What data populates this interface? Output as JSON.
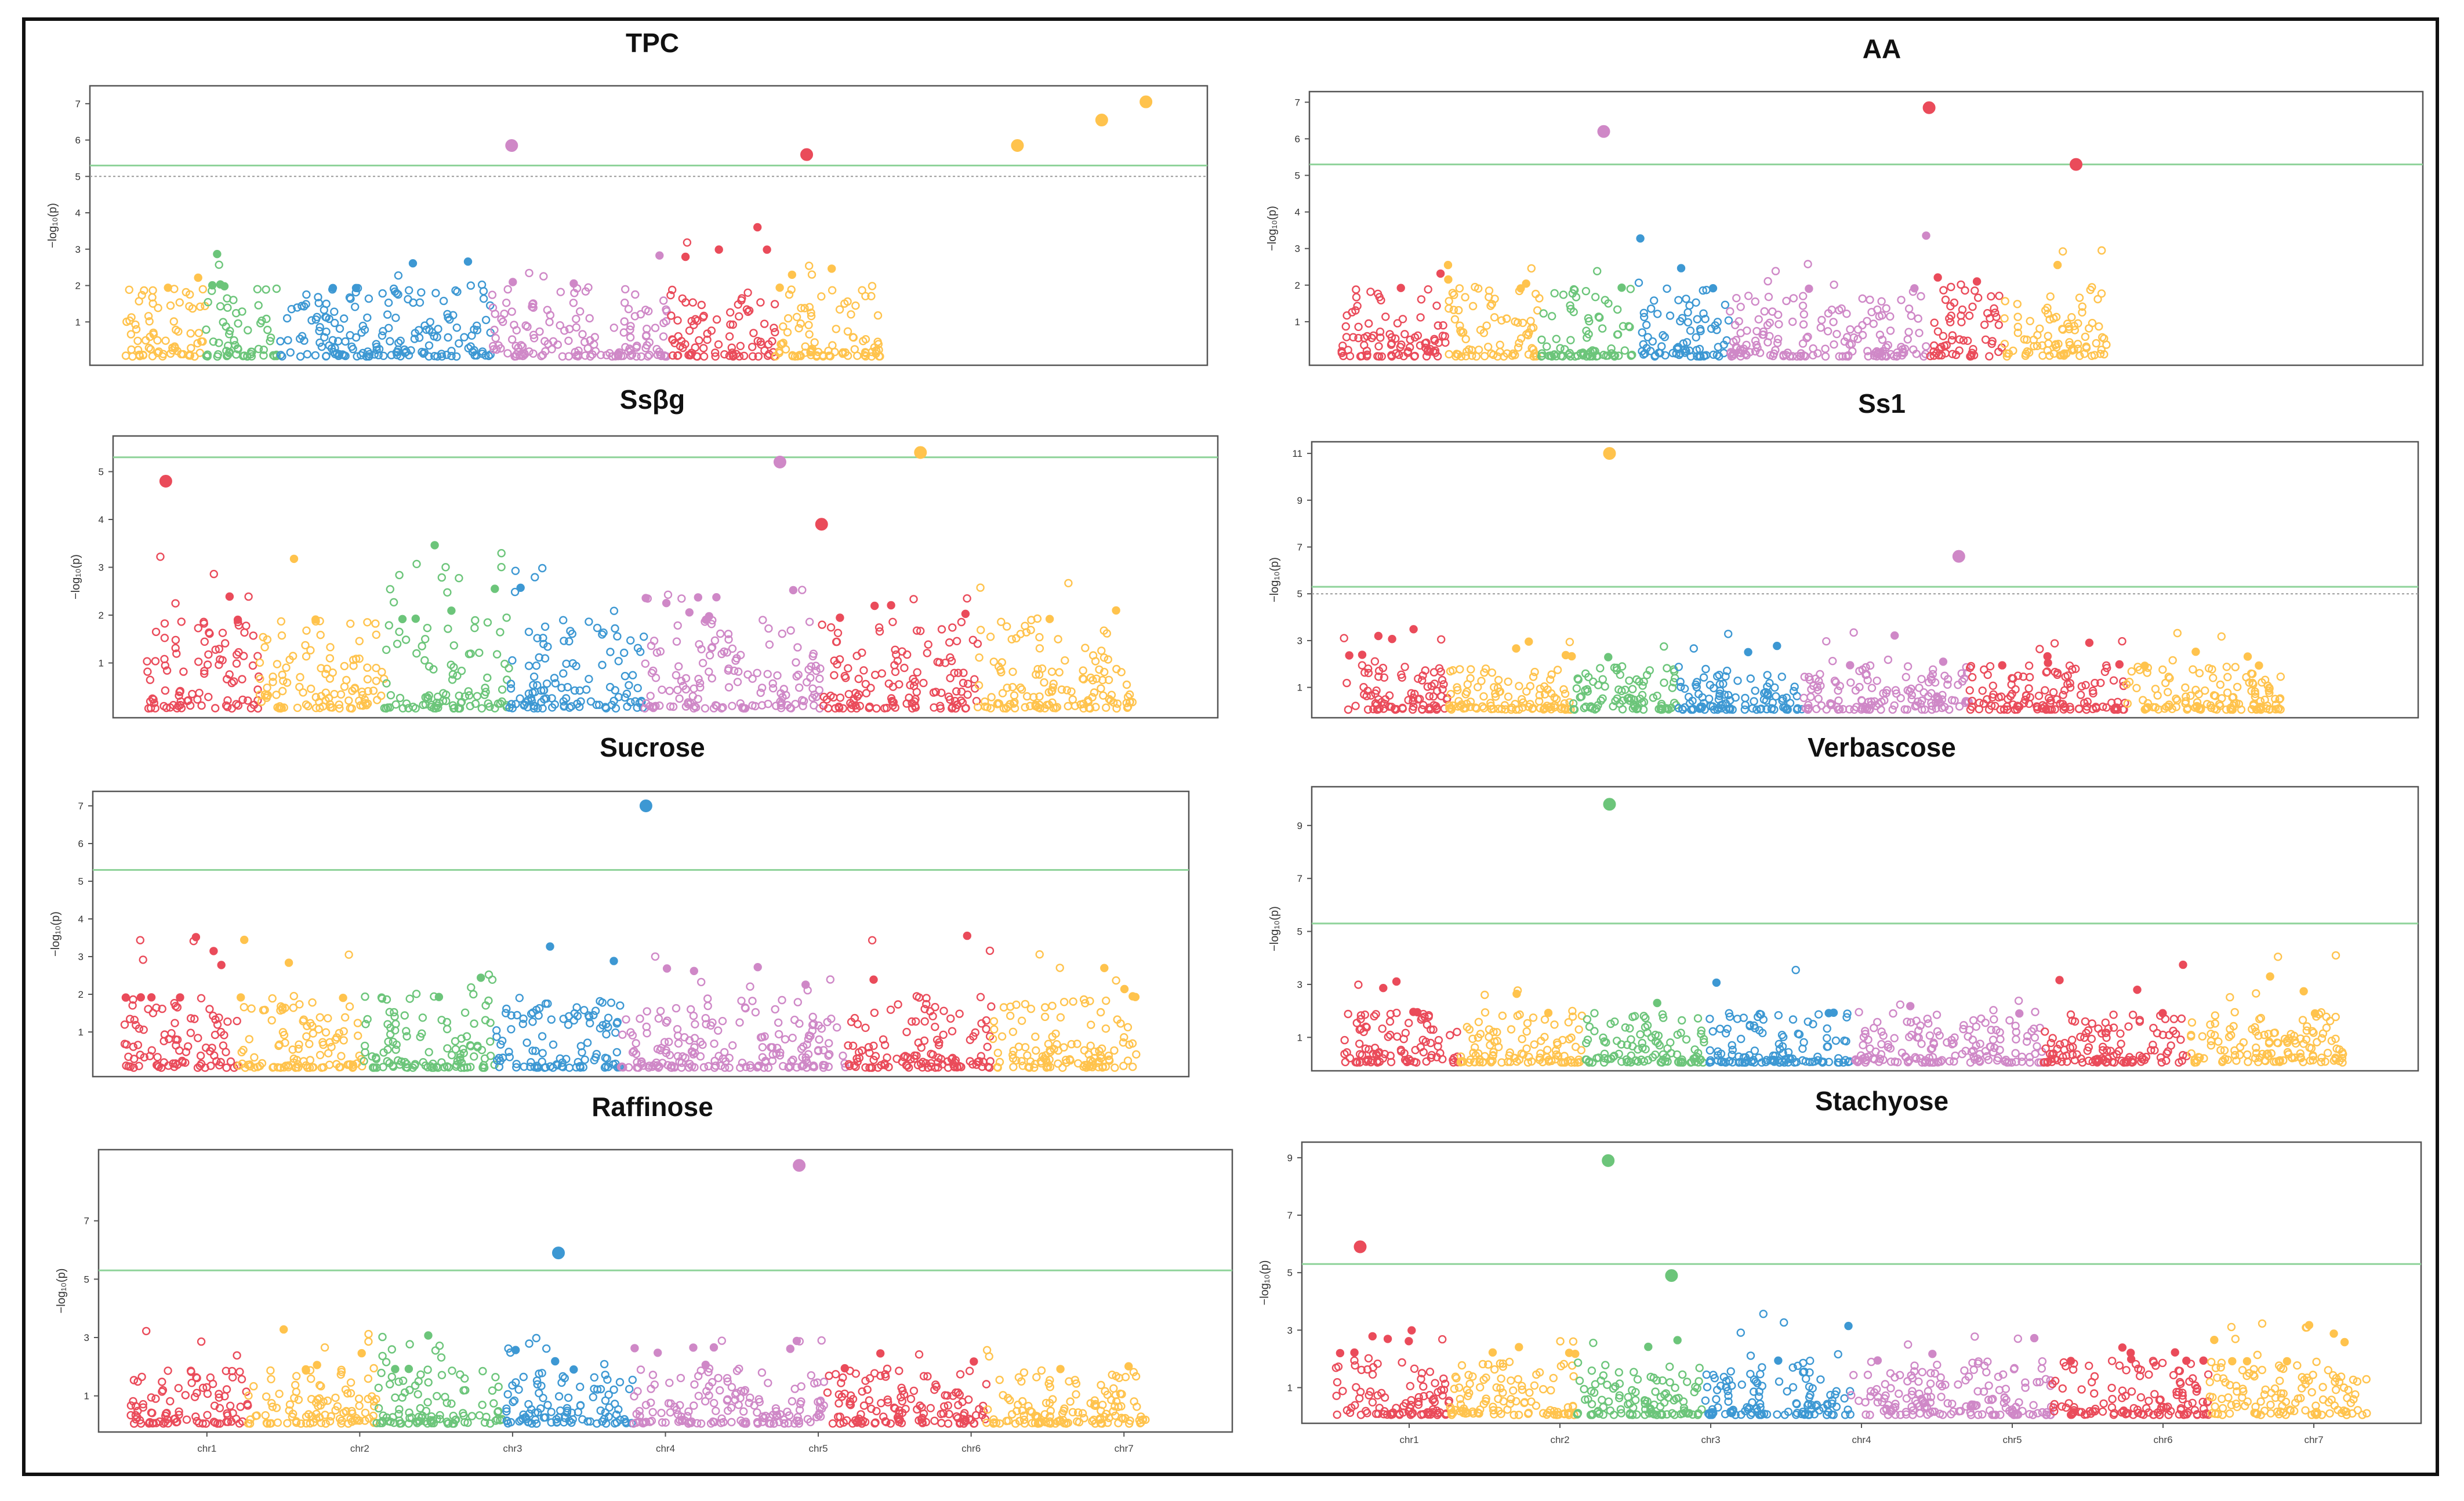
{
  "figure": {
    "colors": [
      "#ea4b5a",
      "#ffc34d",
      "#6cc57a",
      "#3d98d3",
      "#cf88c7"
    ],
    "threshold_color": "#8fd39a"
  },
  "chart_data": [
    {
      "type": "scatter",
      "title": "TPC",
      "ylabel": "−log₁₀(p)",
      "yticks": [
        "1",
        "2",
        "3",
        "4",
        "5",
        "6",
        "7"
      ],
      "ylim": [
        0,
        7.3
      ],
      "threshold": 5.3,
      "suggestive": 5.0,
      "chromosomes": [
        "chr1",
        "chr2",
        "chr3",
        "chr4",
        "chr5",
        "chr6",
        "chr7"
      ],
      "show_xlabels": false,
      "segments": [
        [
          0,
          1,
          0.08,
          2.4
        ],
        [
          1,
          2,
          0.07,
          3.0
        ],
        [
          2,
          3,
          0.1,
          3.8
        ],
        [
          3,
          3,
          0.1,
          3.0
        ],
        [
          4,
          4,
          0.09,
          2.8
        ],
        [
          5,
          4,
          0.08,
          3.2
        ],
        [
          6,
          0,
          0.1,
          3.8
        ],
        [
          7,
          1,
          0.1,
          2.6
        ]
      ],
      "peaks": [
        {
          "x": 0.37,
          "y": 5.85,
          "c": 4
        },
        {
          "x": 0.65,
          "y": 5.6,
          "c": 0
        },
        {
          "x": 0.85,
          "y": 5.85,
          "c": 1
        },
        {
          "x": 0.93,
          "y": 6.55,
          "c": 1
        },
        {
          "x": 0.972,
          "y": 7.05,
          "c": 1
        }
      ]
    },
    {
      "type": "scatter",
      "title": "AA",
      "ylabel": "−log₁₀(p)",
      "yticks": [
        "1",
        "2",
        "3",
        "4",
        "5",
        "6",
        "7"
      ],
      "ylim": [
        0,
        7.1
      ],
      "threshold": 5.3,
      "suggestive": null,
      "chromosomes": [
        "chr1",
        "chr2",
        "chr3",
        "chr4",
        "chr5",
        "chr6",
        "chr7"
      ],
      "show_xlabels": false,
      "segments": [
        [
          0,
          0,
          0.1,
          3.4
        ],
        [
          1,
          1,
          0.09,
          2.6
        ],
        [
          2,
          2,
          0.09,
          2.4
        ],
        [
          3,
          3,
          0.09,
          3.9
        ],
        [
          4,
          4,
          0.11,
          3.4
        ],
        [
          5,
          4,
          0.08,
          3.4
        ],
        [
          6,
          0,
          0.07,
          2.4
        ],
        [
          7,
          1,
          0.1,
          3.0
        ]
      ],
      "peaks": [
        {
          "x": 0.25,
          "y": 6.2,
          "c": 4
        },
        {
          "x": 0.56,
          "y": 6.85,
          "c": 0
        },
        {
          "x": 0.7,
          "y": 5.3,
          "c": 0
        }
      ]
    },
    {
      "type": "scatter",
      "title": "Ssβg",
      "ylabel": "−log₁₀(p)",
      "yticks": [
        "1",
        "2",
        "3",
        "4",
        "5"
      ],
      "ylim": [
        0,
        5.6
      ],
      "threshold": 5.3,
      "suggestive": null,
      "chromosomes": [
        "chr1",
        "chr2",
        "chr3",
        "chr4",
        "chr5",
        "chr6",
        "chr7"
      ],
      "show_xlabels": false,
      "segments": [
        [
          0,
          0,
          0.11,
          3.3
        ],
        [
          1,
          1,
          0.12,
          3.2
        ],
        [
          2,
          2,
          0.12,
          3.5
        ],
        [
          3,
          3,
          0.13,
          3.0
        ],
        [
          4,
          4,
          0.11,
          2.6
        ],
        [
          5,
          4,
          0.06,
          2.6
        ],
        [
          6,
          0,
          0.15,
          2.4
        ],
        [
          7,
          1,
          0.15,
          3.2
        ]
      ],
      "peaks": [
        {
          "x": 0.02,
          "y": 4.8,
          "c": 0
        },
        {
          "x": 0.65,
          "y": 3.9,
          "c": 0
        },
        {
          "x": 0.61,
          "y": 5.2,
          "c": 4
        },
        {
          "x": 0.745,
          "y": 5.4,
          "c": 1
        }
      ]
    },
    {
      "type": "scatter",
      "title": "Ss1",
      "ylabel": "−log₁₀(p)",
      "yticks": [
        "1",
        "3",
        "5",
        "7",
        "9",
        "11"
      ],
      "ylim": [
        0,
        11.2
      ],
      "threshold": 5.3,
      "suggestive": 5.0,
      "chromosomes": [
        "chr1",
        "chr2",
        "chr3",
        "chr4",
        "chr5",
        "chr6",
        "chr7"
      ],
      "show_xlabels": false,
      "segments": [
        [
          0,
          0,
          0.1,
          3.5
        ],
        [
          1,
          1,
          0.12,
          3.5
        ],
        [
          2,
          2,
          0.1,
          3.2
        ],
        [
          3,
          3,
          0.12,
          3.4
        ],
        [
          4,
          4,
          0.09,
          3.8
        ],
        [
          5,
          4,
          0.07,
          3.0
        ],
        [
          6,
          0,
          0.15,
          3.6
        ],
        [
          7,
          1,
          0.15,
          3.5
        ]
      ],
      "peaks": [
        {
          "x": 0.255,
          "y": 11.0,
          "c": 1
        },
        {
          "x": 0.59,
          "y": 6.6,
          "c": 4
        }
      ]
    },
    {
      "type": "scatter",
      "title": "Sucrose",
      "ylabel": "−log₁₀(p)",
      "yticks": [
        "1",
        "2",
        "3",
        "4",
        "5",
        "6",
        "7"
      ],
      "ylim": [
        0,
        7.2
      ],
      "threshold": 5.3,
      "suggestive": null,
      "chromosomes": [
        "chr1",
        "chr2",
        "chr3",
        "chr4",
        "chr5",
        "chr6",
        "chr7"
      ],
      "show_xlabels": false,
      "segments": [
        [
          0,
          0,
          0.11,
          3.8
        ],
        [
          1,
          1,
          0.12,
          4.0
        ],
        [
          2,
          2,
          0.13,
          2.6
        ],
        [
          3,
          3,
          0.12,
          3.6
        ],
        [
          4,
          4,
          0.16,
          3.9
        ],
        [
          5,
          4,
          0.06,
          2.4
        ],
        [
          6,
          0,
          0.14,
          3.8
        ],
        [
          7,
          1,
          0.14,
          3.3
        ]
      ],
      "peaks": [
        {
          "x": 0.505,
          "y": 7.0,
          "c": 3
        }
      ]
    },
    {
      "type": "scatter",
      "title": "Verbascose",
      "ylabel": "−log₁₀(p)",
      "yticks": [
        "1",
        "3",
        "5",
        "7",
        "9"
      ],
      "ylim": [
        0,
        10.2
      ],
      "threshold": 5.3,
      "suggestive": null,
      "chromosomes": [
        "chr1",
        "chr2",
        "chr3",
        "chr4",
        "chr5",
        "chr6",
        "chr7"
      ],
      "show_xlabels": false,
      "segments": [
        [
          0,
          0,
          0.11,
          3.2
        ],
        [
          1,
          1,
          0.12,
          3.2
        ],
        [
          2,
          2,
          0.12,
          4.0
        ],
        [
          3,
          3,
          0.14,
          3.6
        ],
        [
          4,
          4,
          0.11,
          3.0
        ],
        [
          5,
          4,
          0.07,
          3.0
        ],
        [
          6,
          0,
          0.14,
          3.8
        ],
        [
          7,
          1,
          0.15,
          4.2
        ]
      ],
      "peaks": [
        {
          "x": 0.255,
          "y": 9.8,
          "c": 2
        }
      ]
    },
    {
      "type": "scatter",
      "title": "Raffinose",
      "ylabel": "−log₁₀(p)",
      "yticks": [
        "1",
        "3",
        "5",
        "7"
      ],
      "ylim": [
        0,
        9.2
      ],
      "threshold": 5.3,
      "suggestive": null,
      "chromosomes": [
        "chr1",
        "chr2",
        "chr3",
        "chr4",
        "chr5",
        "chr6",
        "chr7"
      ],
      "show_xlabels": true,
      "segments": [
        [
          0,
          0,
          0.11,
          3.3
        ],
        [
          1,
          1,
          0.12,
          3.3
        ],
        [
          2,
          2,
          0.12,
          3.1
        ],
        [
          3,
          3,
          0.12,
          3.0
        ],
        [
          4,
          4,
          0.12,
          3.0
        ],
        [
          5,
          4,
          0.06,
          3.0
        ],
        [
          6,
          0,
          0.15,
          2.8
        ],
        [
          7,
          1,
          0.15,
          2.8
        ]
      ],
      "peaks": [
        {
          "x": 0.4,
          "y": 5.9,
          "c": 3
        },
        {
          "x": 0.625,
          "y": 8.9,
          "c": 4
        }
      ]
    },
    {
      "type": "scatter",
      "title": "Stachyose",
      "ylabel": "−log₁₀(p)",
      "yticks": [
        "1",
        "3",
        "5",
        "7",
        "9"
      ],
      "ylim": [
        0,
        9.3
      ],
      "threshold": 5.3,
      "suggestive": null,
      "chromosomes": [
        "chr1",
        "chr2",
        "chr3",
        "chr4",
        "chr5",
        "chr6",
        "chr7"
      ],
      "show_xlabels": true,
      "segments": [
        [
          0,
          0,
          0.11,
          3.0
        ],
        [
          1,
          1,
          0.12,
          3.0
        ],
        [
          2,
          2,
          0.12,
          3.2
        ],
        [
          3,
          3,
          0.14,
          3.7
        ],
        [
          4,
          4,
          0.12,
          3.3
        ],
        [
          5,
          4,
          0.07,
          3.3
        ],
        [
          6,
          0,
          0.15,
          3.2
        ],
        [
          7,
          1,
          0.15,
          3.4
        ]
      ],
      "peaks": [
        {
          "x": 0.025,
          "y": 5.9,
          "c": 0
        },
        {
          "x": 0.26,
          "y": 8.9,
          "c": 2
        },
        {
          "x": 0.32,
          "y": 4.9,
          "c": 2
        }
      ]
    }
  ]
}
